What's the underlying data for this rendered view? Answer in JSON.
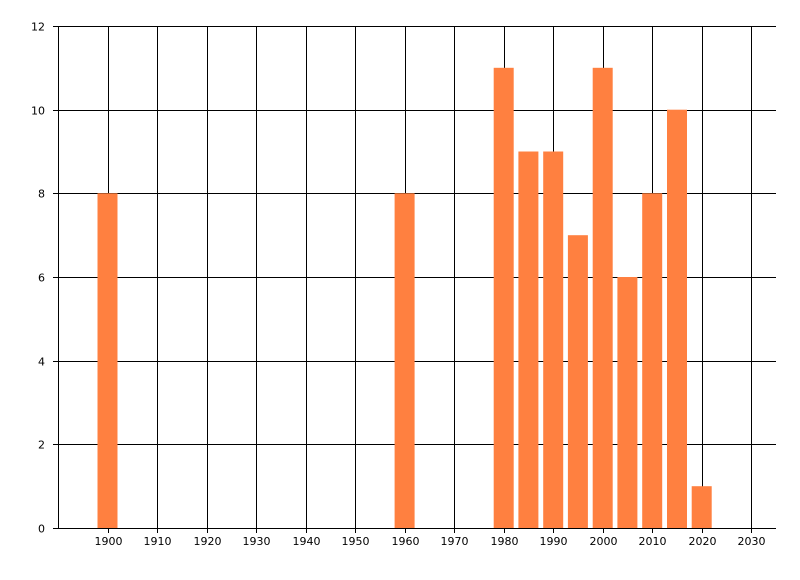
{
  "chart_data": {
    "type": "bar",
    "title": "",
    "xlabel": "",
    "ylabel": "",
    "x": [
      1900,
      1960,
      1980,
      1985,
      1990,
      1995,
      2000,
      2005,
      2010,
      2015,
      2020
    ],
    "values": [
      8,
      8,
      11,
      9,
      9,
      7,
      11,
      6,
      8,
      10,
      1
    ],
    "xlim": [
      1890,
      2035
    ],
    "ylim": [
      0,
      12
    ],
    "x_ticks": [
      "1900",
      "1910",
      "1920",
      "1930",
      "1940",
      "1950",
      "1960",
      "1970",
      "1980",
      "1990",
      "2000",
      "2010",
      "2020",
      "2030"
    ],
    "y_ticks": [
      "0",
      "2",
      "4",
      "6",
      "8",
      "10",
      "12"
    ],
    "grid": true,
    "bar_color": "#ff8040",
    "grid_color": "#000000"
  }
}
